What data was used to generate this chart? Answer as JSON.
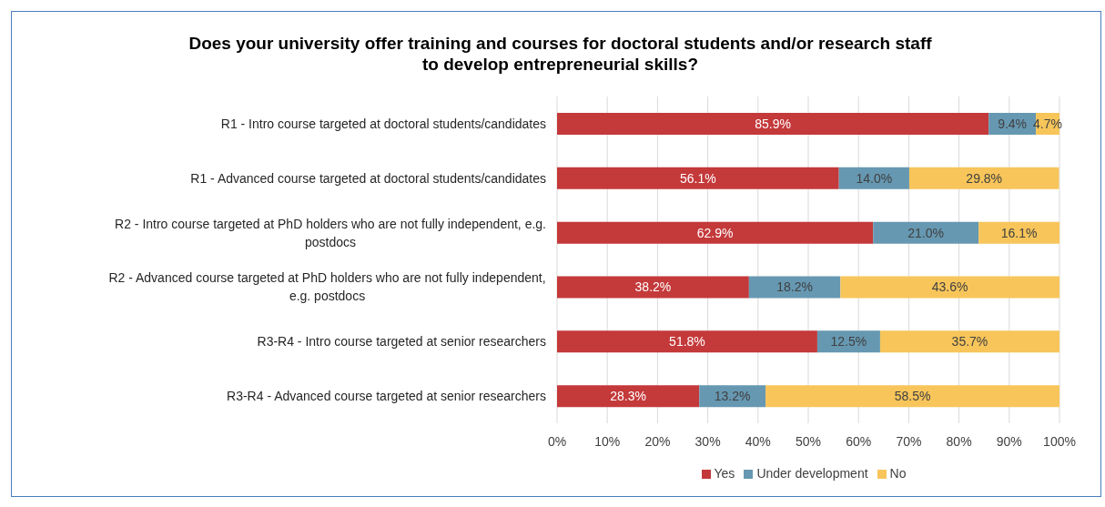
{
  "chart_data": {
    "type": "bar",
    "orientation": "horizontal",
    "stacked": true,
    "title": "Does your university offer training and courses for doctoral students and/or research staff to develop entrepreneurial skills?",
    "categories": [
      "R1 - Intro course targeted at doctoral students/candidates",
      "R1 - Advanced course targeted at doctoral students/candidates",
      "R2 - Intro course targeted at PhD holders who are not fully independent, e.g. postdocs",
      "R2 - Advanced course targeted at PhD holders who are not fully independent, e.g. postdocs",
      "R3-R4 - Intro course targeted at senior researchers",
      "R3-R4 - Advanced course targeted at senior researchers"
    ],
    "series": [
      {
        "name": "Yes",
        "color": "#c4393a",
        "values": [
          85.9,
          56.1,
          62.9,
          38.2,
          51.8,
          28.3
        ],
        "value_labels": [
          "85.9%",
          "56.1%",
          "62.9%",
          "38.2%",
          "51.8%",
          "28.3%"
        ]
      },
      {
        "name": "Under development",
        "color": "#6698b2",
        "values": [
          9.4,
          14.0,
          21.0,
          18.2,
          12.5,
          13.2
        ],
        "value_labels": [
          "9.4%",
          "14.0%",
          "21.0%",
          "18.2%",
          "12.5%",
          "13.2%"
        ]
      },
      {
        "name": "No",
        "color": "#f7c55a",
        "values": [
          4.7,
          29.8,
          16.1,
          43.6,
          35.7,
          58.5
        ],
        "value_labels": [
          "4.7%",
          "29.8%",
          "16.1%",
          "43.6%",
          "35.7%",
          "58.5%"
        ]
      }
    ],
    "xlim": [
      0,
      100
    ],
    "xticks": [
      {
        "value": 0,
        "label": "0%"
      },
      {
        "value": 10,
        "label": "10%"
      },
      {
        "value": 20,
        "label": "20%"
      },
      {
        "value": 30,
        "label": "30%"
      },
      {
        "value": 40,
        "label": "40%"
      },
      {
        "value": 50,
        "label": "50%"
      },
      {
        "value": 60,
        "label": "60%"
      },
      {
        "value": 70,
        "label": "70%"
      },
      {
        "value": 80,
        "label": "80%"
      },
      {
        "value": 90,
        "label": "90%"
      },
      {
        "value": 100,
        "label": "100%"
      }
    ],
    "grid": "x",
    "legend": "bottom"
  }
}
